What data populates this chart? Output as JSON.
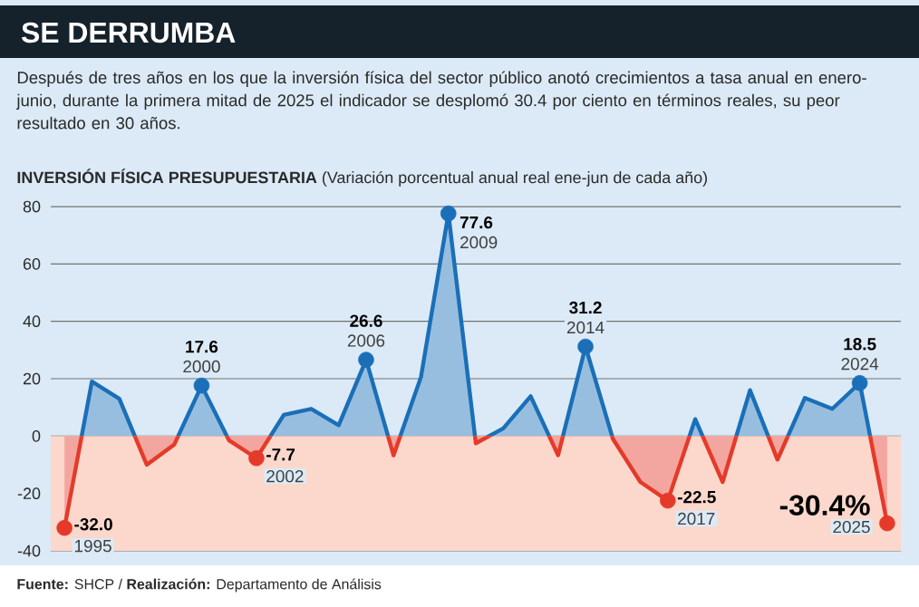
{
  "chart_data": {
    "type": "area",
    "title": "SE DERRUMBA",
    "subtitle": "Después de tres años en los que la inversión física del sector público anotó crecimientos a tasa anual en enero-junio, durante la primera mitad de 2025 el indicador se desplomó 30.4 por ciento en términos reales, su peor resultado en 30 años.",
    "ylabel": "**INVERSIÓN FÍSICA PRESUPUESTARIA** (Variación porcentual anual real ene-jun de cada año)",
    "categories": [
      null,
      null,
      null,
      null,
      null,
      null,
      null,
      null,
      null,
      null,
      null,
      null,
      null,
      null,
      null,
      null,
      null,
      null,
      null,
      null,
      null,
      null,
      null,
      null,
      null,
      null,
      null,
      null,
      null,
      null,
      null
    ],
    "series": [
      {
        "color": "#1a6fb8",
        "values": [
          -32.0,
          19,
          13,
          -10,
          -3,
          17.6,
          -1.5,
          -7.7,
          7.4,
          9.5,
          3.8,
          26.6,
          -6.7,
          20.6,
          77.6,
          -2.5,
          2.7,
          13.9,
          -6.7,
          31.2,
          -1,
          -16,
          -22.5,
          5.9,
          -16,
          16,
          -8.2,
          13.3,
          9.5,
          18.5,
          -30.4
        ],
        "colors": [
          "#e53a2a",
          null,
          null,
          null,
          null,
          "#1a6fb8",
          null,
          "#e53a2a",
          null,
          null,
          null,
          "#1a6fb8",
          null,
          null,
          "#1a6fb8",
          null,
          null,
          null,
          null,
          "#1a6fb8",
          null,
          null,
          "#e53a2a",
          null,
          null,
          null,
          null,
          null,
          null,
          "#1a6fb8",
          "#e53a2a"
        ],
        "value_labels": [
          "-32.0",
          null,
          null,
          null,
          null,
          "17.6",
          null,
          "-7.7",
          null,
          null,
          null,
          "26.6",
          null,
          null,
          "77.6",
          null,
          null,
          null,
          null,
          "31.2",
          null,
          null,
          "-22.5",
          null,
          null,
          null,
          null,
          null,
          null,
          "18.5",
          "-30.4%"
        ]
      }
    ],
    "annotations": [
      "1995",
      "2000",
      "2002",
      "2006",
      "2009",
      "2014",
      "2017",
      "2024",
      "2025",
      "**Fuente:** SHCP / **Realización:** Departamento de Análisis"
    ],
    "bands": [
      {
        "axis": "y",
        "from": -40,
        "to": 0,
        "color": "#fbd8cb"
      }
    ],
    "ylim": [
      -40,
      80
    ],
    "yticks": [
      -40,
      -20,
      0,
      20,
      40,
      60,
      80
    ],
    "tick_labels": "y",
    "grid": "y"
  }
}
